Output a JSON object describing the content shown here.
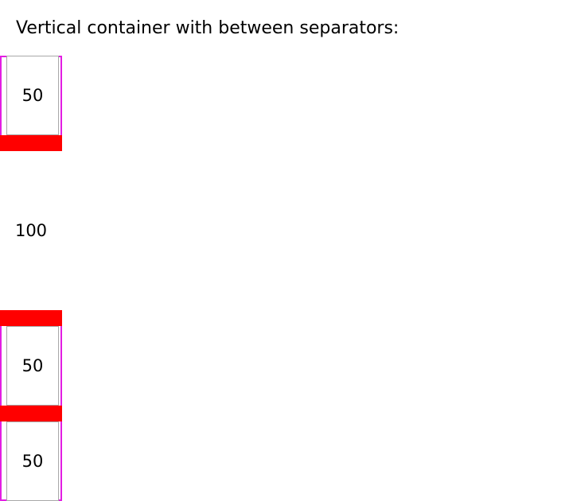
{
  "heading": "Vertical container with between separators:",
  "container": {
    "items": [
      {
        "label": "50"
      },
      {
        "label": "100"
      },
      {
        "label": "50"
      },
      {
        "label": "50"
      }
    ]
  },
  "colors": {
    "container_border": "#e31ee3",
    "separator": "#ff0000",
    "item_border": "#a8a8a8"
  }
}
